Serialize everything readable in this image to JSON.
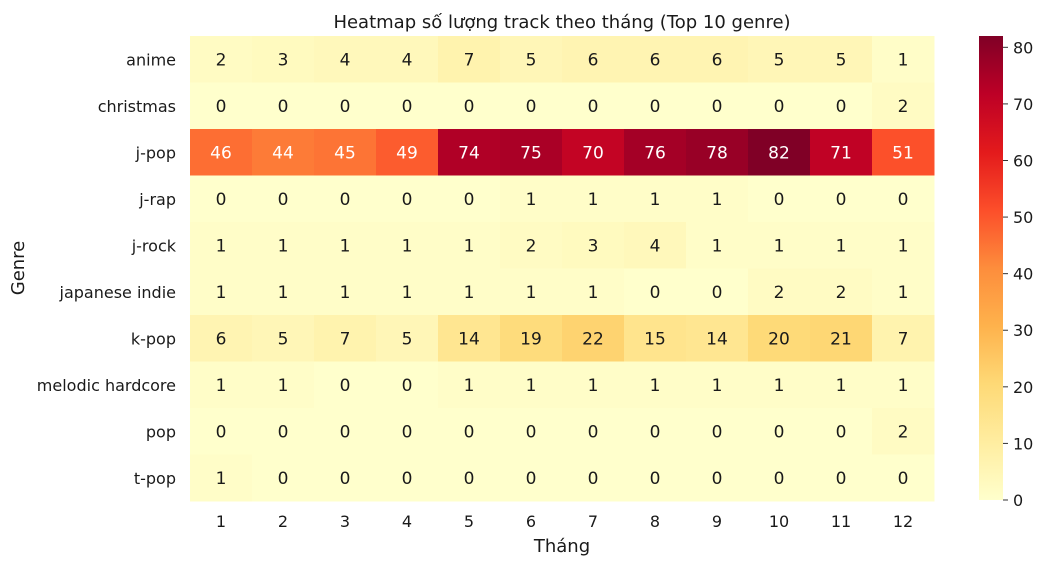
{
  "chart_data": {
    "type": "heatmap",
    "title": "Heatmap số lượng track theo tháng (Top 10 genre)",
    "xlabel": "Tháng",
    "ylabel": "Genre",
    "x_categories": [
      "1",
      "2",
      "3",
      "4",
      "5",
      "6",
      "7",
      "8",
      "9",
      "10",
      "11",
      "12"
    ],
    "y_categories": [
      "anime",
      "christmas",
      "j-pop",
      "j-rap",
      "j-rock",
      "japanese indie",
      "k-pop",
      "melodic hardcore",
      "pop",
      "t-pop"
    ],
    "values": [
      [
        2,
        3,
        4,
        4,
        7,
        5,
        6,
        6,
        6,
        5,
        5,
        1
      ],
      [
        0,
        0,
        0,
        0,
        0,
        0,
        0,
        0,
        0,
        0,
        0,
        2
      ],
      [
        46,
        44,
        45,
        49,
        74,
        75,
        70,
        76,
        78,
        82,
        71,
        51
      ],
      [
        0,
        0,
        0,
        0,
        0,
        1,
        1,
        1,
        1,
        0,
        0,
        0
      ],
      [
        1,
        1,
        1,
        1,
        1,
        2,
        3,
        4,
        1,
        1,
        1,
        1
      ],
      [
        1,
        1,
        1,
        1,
        1,
        1,
        1,
        0,
        0,
        2,
        2,
        1
      ],
      [
        6,
        5,
        7,
        5,
        14,
        19,
        22,
        15,
        14,
        20,
        21,
        7
      ],
      [
        1,
        1,
        0,
        0,
        1,
        1,
        1,
        1,
        1,
        1,
        1,
        1
      ],
      [
        0,
        0,
        0,
        0,
        0,
        0,
        0,
        0,
        0,
        0,
        0,
        2
      ],
      [
        1,
        0,
        0,
        0,
        0,
        0,
        0,
        0,
        0,
        0,
        0,
        0
      ]
    ],
    "colormap": "YlOrRd",
    "vmin": 0,
    "vmax": 82,
    "colorbar_ticks": [
      0,
      10,
      20,
      30,
      40,
      50,
      60,
      70,
      80
    ],
    "annotations": true,
    "grid": false
  }
}
